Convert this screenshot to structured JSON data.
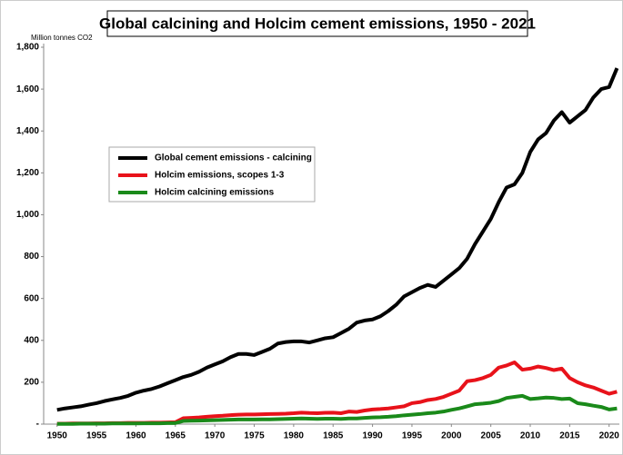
{
  "chart_data": {
    "type": "line",
    "title": "Global calcining and Holcim cement emissions, 1950 - 2021",
    "y_label": "Million tonnes CO2",
    "x": [
      1950,
      1951,
      1952,
      1953,
      1954,
      1955,
      1956,
      1957,
      1958,
      1959,
      1960,
      1961,
      1962,
      1963,
      1964,
      1965,
      1966,
      1967,
      1968,
      1969,
      1970,
      1971,
      1972,
      1973,
      1974,
      1975,
      1976,
      1977,
      1978,
      1979,
      1980,
      1981,
      1982,
      1983,
      1984,
      1985,
      1986,
      1987,
      1988,
      1989,
      1990,
      1991,
      1992,
      1993,
      1994,
      1995,
      1996,
      1997,
      1998,
      1999,
      2000,
      2001,
      2002,
      2003,
      2004,
      2005,
      2006,
      2007,
      2008,
      2009,
      2010,
      2011,
      2012,
      2013,
      2014,
      2015,
      2016,
      2017,
      2018,
      2019,
      2020,
      2021
    ],
    "series": [
      {
        "name": "Global cement emissions - calcining",
        "color": "#000000",
        "values": [
          68,
          75,
          80,
          85,
          93,
          100,
          110,
          118,
          125,
          135,
          150,
          160,
          168,
          180,
          195,
          210,
          225,
          235,
          250,
          270,
          285,
          300,
          320,
          335,
          335,
          330,
          345,
          360,
          385,
          392,
          395,
          395,
          390,
          400,
          410,
          415,
          435,
          455,
          485,
          495,
          500,
          515,
          540,
          570,
          610,
          630,
          650,
          665,
          655,
          685,
          715,
          745,
          790,
          860,
          920,
          980,
          1060,
          1130,
          1145,
          1200,
          1300,
          1360,
          1390,
          1450,
          1490,
          1440,
          1470,
          1500,
          1560,
          1600,
          1610,
          1700
        ]
      },
      {
        "name": "Holcim emissions, scopes 1-3",
        "color": "#e8121a",
        "values": [
          2,
          2,
          3,
          3,
          3,
          4,
          4,
          5,
          5,
          6,
          6,
          6,
          7,
          7,
          8,
          9,
          28,
          30,
          32,
          35,
          38,
          40,
          43,
          45,
          46,
          46,
          47,
          48,
          49,
          50,
          52,
          55,
          53,
          52,
          54,
          55,
          52,
          60,
          58,
          65,
          70,
          72,
          75,
          80,
          85,
          100,
          105,
          115,
          120,
          130,
          145,
          160,
          205,
          210,
          220,
          235,
          270,
          280,
          295,
          260,
          265,
          275,
          268,
          258,
          265,
          220,
          200,
          185,
          175,
          160,
          145,
          155
        ]
      },
      {
        "name": "Holcim calcining emissions",
        "color": "#1a8a1a",
        "values": [
          1,
          1,
          1,
          2,
          2,
          2,
          2,
          3,
          3,
          3,
          3,
          4,
          4,
          4,
          5,
          5,
          15,
          16,
          17,
          18,
          19,
          20,
          21,
          22,
          22,
          22,
          23,
          23,
          24,
          25,
          26,
          27,
          26,
          25,
          26,
          26,
          25,
          27,
          27,
          30,
          32,
          33,
          35,
          38,
          42,
          45,
          48,
          52,
          55,
          60,
          68,
          75,
          85,
          95,
          98,
          102,
          110,
          125,
          130,
          135,
          120,
          123,
          127,
          125,
          120,
          122,
          100,
          95,
          88,
          82,
          70,
          75
        ]
      }
    ],
    "xlim": [
      1948.3,
      2021.3
    ],
    "ylim": [
      0,
      1800
    ],
    "xticks": [
      1950,
      1955,
      1960,
      1965,
      1970,
      1975,
      1980,
      1985,
      1990,
      1995,
      2000,
      2005,
      2010,
      2015,
      2020
    ],
    "yticks": [
      {
        "value": 0,
        "label": "-"
      },
      200,
      400,
      600,
      800,
      {
        "value": 1000,
        "label": "1,000"
      },
      {
        "value": 1200,
        "label": "1,200"
      },
      {
        "value": 1400,
        "label": "1,400"
      },
      {
        "value": 1600,
        "label": "1,600"
      },
      {
        "value": 1800,
        "label": "1,800"
      }
    ],
    "legend_position": "center-left"
  }
}
